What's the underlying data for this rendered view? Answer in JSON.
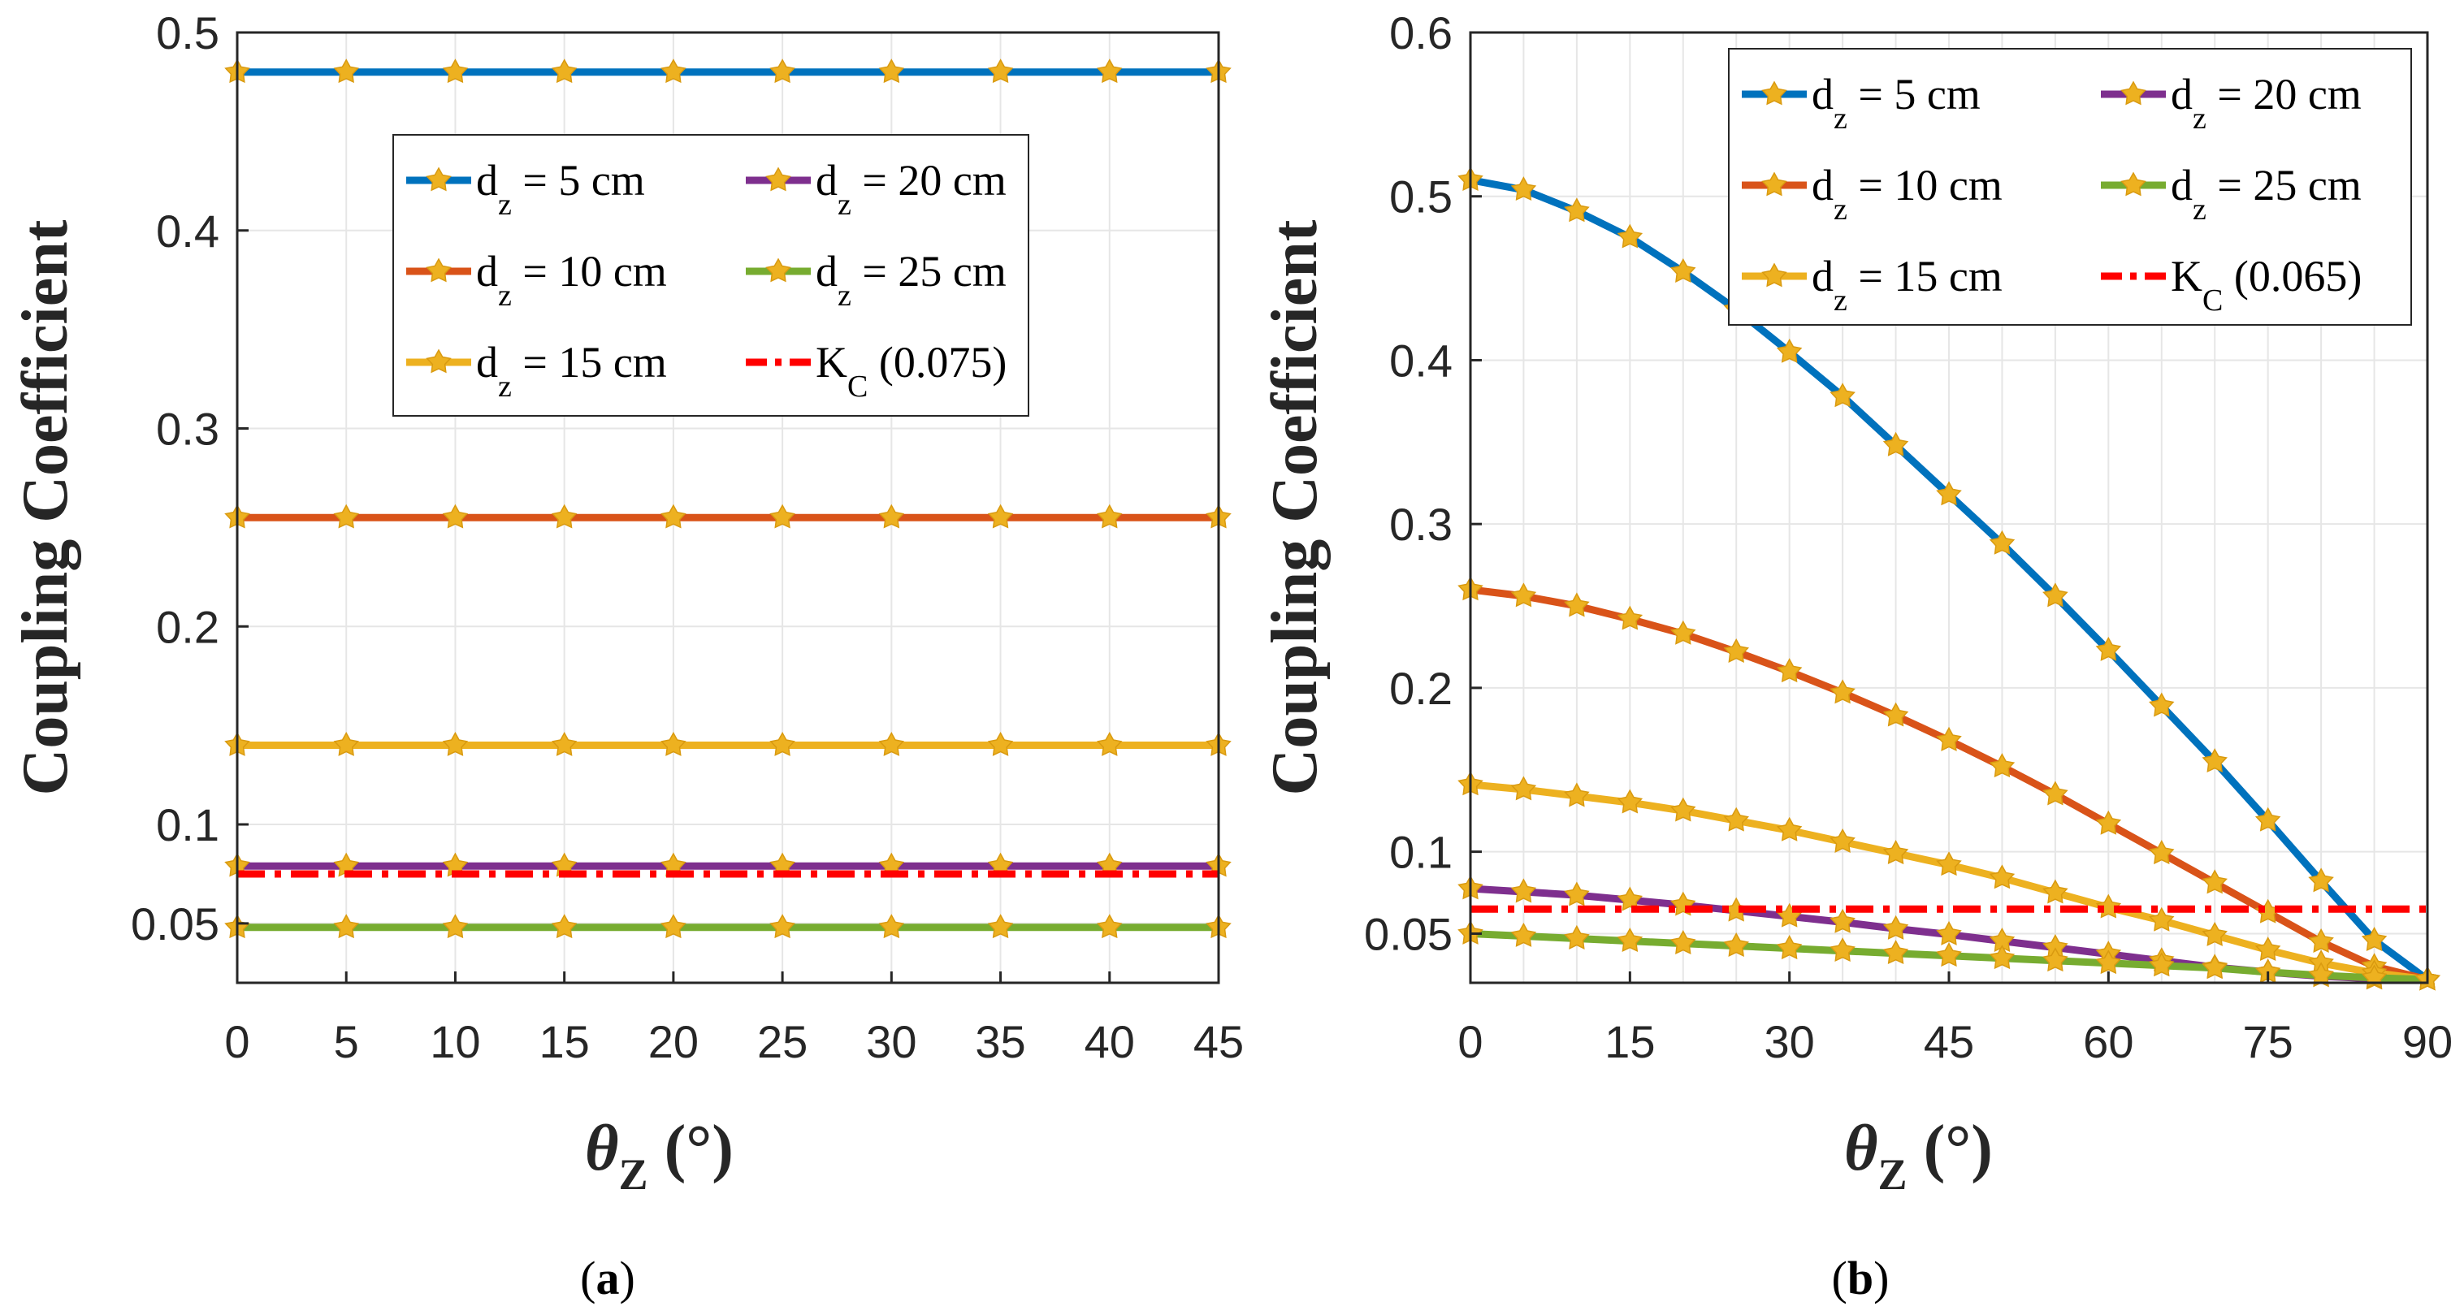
{
  "chart_data": [
    {
      "type": "line",
      "panel_label": "a",
      "xlabel_symbol": "θ",
      "xlabel_sub": "Z",
      "xlabel_unit": "(°)",
      "ylabel": "Coupling Coefficient",
      "xlim": [
        0,
        45
      ],
      "ylim": [
        0.02,
        0.5
      ],
      "xticks": [
        0,
        5,
        10,
        15,
        20,
        25,
        30,
        35,
        40,
        45
      ],
      "xtick_labels": [
        "0",
        "5",
        "10",
        "15",
        "20",
        "25",
        "30",
        "35",
        "40",
        "45"
      ],
      "yticks": [
        0.05,
        0.1,
        0.2,
        0.3,
        0.4,
        0.5
      ],
      "ytick_labels": [
        "0.05",
        "0.1",
        "0.2",
        "0.3",
        "0.4",
        "0.5"
      ],
      "grid": true,
      "legend_position": "top-right",
      "x": [
        0,
        5,
        10,
        15,
        20,
        25,
        30,
        35,
        40,
        45
      ],
      "series": [
        {
          "name": "d",
          "sub": "z",
          "label_rest": " = 5 cm",
          "color": "#0072BD",
          "values": [
            0.48,
            0.48,
            0.48,
            0.48,
            0.48,
            0.48,
            0.48,
            0.48,
            0.48,
            0.48
          ]
        },
        {
          "name": "d",
          "sub": "z",
          "label_rest": " = 10 cm",
          "color": "#D95319",
          "values": [
            0.255,
            0.255,
            0.255,
            0.255,
            0.255,
            0.255,
            0.255,
            0.255,
            0.255,
            0.255
          ]
        },
        {
          "name": "d",
          "sub": "z",
          "label_rest": " = 15 cm",
          "color": "#EDB120",
          "values": [
            0.14,
            0.14,
            0.14,
            0.14,
            0.14,
            0.14,
            0.14,
            0.14,
            0.14,
            0.14
          ]
        },
        {
          "name": "d",
          "sub": "z",
          "label_rest": " = 20 cm",
          "color": "#7E2F8E",
          "values": [
            0.079,
            0.079,
            0.079,
            0.079,
            0.079,
            0.079,
            0.079,
            0.079,
            0.079,
            0.079
          ]
        },
        {
          "name": "d",
          "sub": "z",
          "label_rest": " = 25 cm",
          "color": "#77AC30",
          "values": [
            0.048,
            0.048,
            0.048,
            0.048,
            0.048,
            0.048,
            0.048,
            0.048,
            0.048,
            0.048
          ]
        }
      ],
      "threshold": {
        "name": "K",
        "sub": "C",
        "label_rest": " (0.075)",
        "value": 0.075,
        "color": "#FF0000"
      },
      "marker_color": "#EDB120"
    },
    {
      "type": "line",
      "panel_label": "b",
      "xlabel_symbol": "θ",
      "xlabel_sub": "Z",
      "xlabel_unit": "(°)",
      "ylabel": "Coupling Coefficient",
      "xlim": [
        0,
        90
      ],
      "ylim": [
        0.02,
        0.6
      ],
      "xticks": [
        0,
        15,
        30,
        45,
        60,
        75,
        90
      ],
      "xtick_labels": [
        "0",
        "15",
        "30",
        "45",
        "60",
        "75",
        "90"
      ],
      "yticks": [
        0.05,
        0.1,
        0.2,
        0.3,
        0.4,
        0.5,
        0.6
      ],
      "ytick_labels": [
        "0.05",
        "0.1",
        "0.2",
        "0.3",
        "0.4",
        "0.5",
        "0.6"
      ],
      "grid": true,
      "legend_position": "top-right",
      "x": [
        0,
        5,
        10,
        15,
        20,
        25,
        30,
        35,
        40,
        45,
        50,
        55,
        60,
        65,
        70,
        75,
        80,
        85,
        90
      ],
      "series": [
        {
          "name": "d",
          "sub": "z",
          "label_rest": " = 5 cm",
          "color": "#0072BD",
          "values": [
            0.51,
            0.504,
            0.491,
            0.475,
            0.454,
            0.431,
            0.405,
            0.378,
            0.348,
            0.318,
            0.288,
            0.256,
            0.223,
            0.189,
            0.155,
            0.119,
            0.082,
            0.046,
            0.022
          ]
        },
        {
          "name": "d",
          "sub": "z",
          "label_rest": " = 10 cm",
          "color": "#D95319",
          "values": [
            0.26,
            0.256,
            0.25,
            0.242,
            0.233,
            0.222,
            0.21,
            0.197,
            0.183,
            0.168,
            0.152,
            0.135,
            0.117,
            0.099,
            0.081,
            0.063,
            0.045,
            0.03,
            0.022
          ]
        },
        {
          "name": "d",
          "sub": "z",
          "label_rest": " = 15 cm",
          "color": "#EDB120",
          "values": [
            0.141,
            0.138,
            0.134,
            0.13,
            0.125,
            0.119,
            0.113,
            0.106,
            0.099,
            0.092,
            0.084,
            0.075,
            0.066,
            0.058,
            0.049,
            0.04,
            0.032,
            0.026,
            0.022
          ]
        },
        {
          "name": "d",
          "sub": "z",
          "label_rest": " = 20 cm",
          "color": "#7E2F8E",
          "values": [
            0.0775,
            0.0755,
            0.0735,
            0.0705,
            0.0675,
            0.064,
            0.0605,
            0.057,
            0.053,
            0.0495,
            0.0455,
            0.0415,
            0.0375,
            0.0335,
            0.0295,
            0.0265,
            0.024,
            0.0225,
            0.022
          ]
        },
        {
          "name": "d",
          "sub": "z",
          "label_rest": " = 25 cm",
          "color": "#77AC30",
          "values": [
            0.05,
            0.0485,
            0.047,
            0.0455,
            0.044,
            0.0425,
            0.041,
            0.0395,
            0.038,
            0.0365,
            0.035,
            0.0335,
            0.032,
            0.0305,
            0.029,
            0.0265,
            0.0245,
            0.023,
            0.022
          ]
        }
      ],
      "threshold": {
        "name": "K",
        "sub": "C",
        "label_rest": " (0.065)",
        "value": 0.065,
        "color": "#FF0000"
      },
      "marker_color": "#EDB120"
    }
  ]
}
